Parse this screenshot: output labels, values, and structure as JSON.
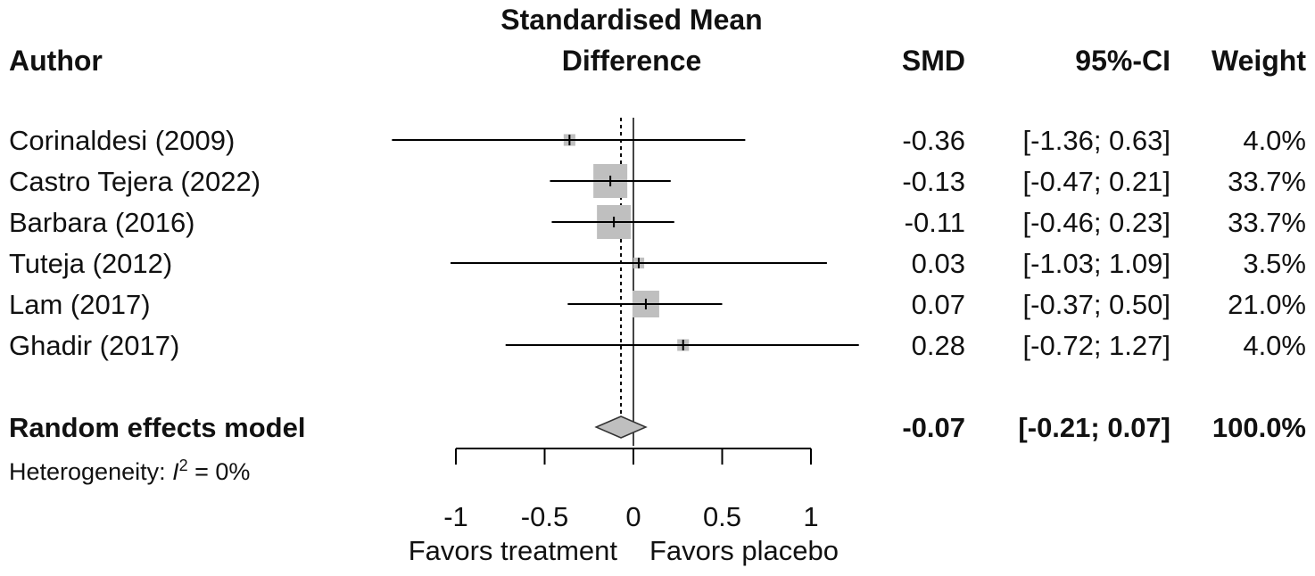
{
  "chart_data": {
    "type": "forest",
    "title": "Standardised Mean Difference",
    "title_line1": "Standardised Mean",
    "title_line2": "Difference",
    "columns": {
      "author": "Author",
      "smd": "SMD",
      "ci": "95%-CI",
      "weight": "Weight"
    },
    "studies": [
      {
        "author": "Corinaldesi (2009)",
        "smd": -0.36,
        "lower": -1.36,
        "upper": 0.63,
        "weight": 4.0,
        "smd_text": "-0.36",
        "ci_text": "[-1.36; 0.63]",
        "weight_text": "4.0%"
      },
      {
        "author": "Castro Tejera (2022)",
        "smd": -0.13,
        "lower": -0.47,
        "upper": 0.21,
        "weight": 33.7,
        "smd_text": "-0.13",
        "ci_text": "[-0.47; 0.21]",
        "weight_text": "33.7%"
      },
      {
        "author": "Barbara (2016)",
        "smd": -0.11,
        "lower": -0.46,
        "upper": 0.23,
        "weight": 33.7,
        "smd_text": "-0.11",
        "ci_text": "[-0.46; 0.23]",
        "weight_text": "33.7%"
      },
      {
        "author": "Tuteja (2012)",
        "smd": 0.03,
        "lower": -1.03,
        "upper": 1.09,
        "weight": 3.5,
        "smd_text": "0.03",
        "ci_text": "[-1.03; 1.09]",
        "weight_text": "3.5%"
      },
      {
        "author": "Lam (2017)",
        "smd": 0.07,
        "lower": -0.37,
        "upper": 0.5,
        "weight": 21.0,
        "smd_text": "0.07",
        "ci_text": "[-0.37; 0.50]",
        "weight_text": "21.0%"
      },
      {
        "author": "Ghadir (2017)",
        "smd": 0.28,
        "lower": -0.72,
        "upper": 1.27,
        "weight": 4.0,
        "smd_text": "0.28",
        "ci_text": "[-0.72; 1.27]",
        "weight_text": "4.0%"
      }
    ],
    "pooled": {
      "label": "Random effects model",
      "smd": -0.07,
      "lower": -0.21,
      "upper": 0.07,
      "smd_text": "-0.07",
      "ci_text": "[-0.21; 0.07]",
      "weight_text": "100.0%"
    },
    "heterogeneity": {
      "prefix": "Heterogeneity: ",
      "symbol": "I",
      "superscript": "2",
      "suffix": " = 0%"
    },
    "x_axis": {
      "ticks": [
        -1,
        -0.5,
        0,
        0.5,
        1
      ],
      "tick_labels": [
        "-1",
        "-0.5",
        "0",
        "0.5",
        "1"
      ],
      "xlim": [
        -1,
        1
      ]
    },
    "favors_left": "Favors treatment",
    "favors_right": "Favors placebo",
    "colors": {
      "box": "#bfbfbf",
      "line": "#000000",
      "diamond": "#bfbfbf"
    }
  }
}
